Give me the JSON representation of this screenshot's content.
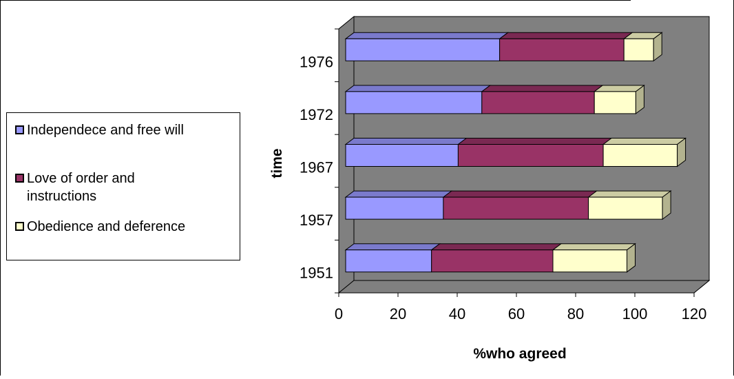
{
  "chart_data": {
    "type": "bar",
    "orientation": "horizontal",
    "stacked": true,
    "style": "3d",
    "categories": [
      "1951",
      "1957",
      "1967",
      "1972",
      "1976"
    ],
    "series": [
      {
        "name": "Independece and free will",
        "values": [
          29,
          33,
          38,
          46,
          52
        ],
        "color": "#9999ff"
      },
      {
        "name": "Love of order and instructions",
        "values": [
          41,
          49,
          49,
          38,
          42
        ],
        "color": "#993366"
      },
      {
        "name": "Obedience and deference",
        "values": [
          25,
          25,
          25,
          14,
          10
        ],
        "color": "#ffffcc"
      }
    ],
    "xlabel": "%who agreed",
    "ylabel": "time",
    "xlim": [
      0,
      120
    ],
    "xticks": [
      "0",
      "20",
      "40",
      "60",
      "80",
      "100",
      "120"
    ],
    "grid": false,
    "legend_position": "left",
    "wall_color": "#808080"
  }
}
